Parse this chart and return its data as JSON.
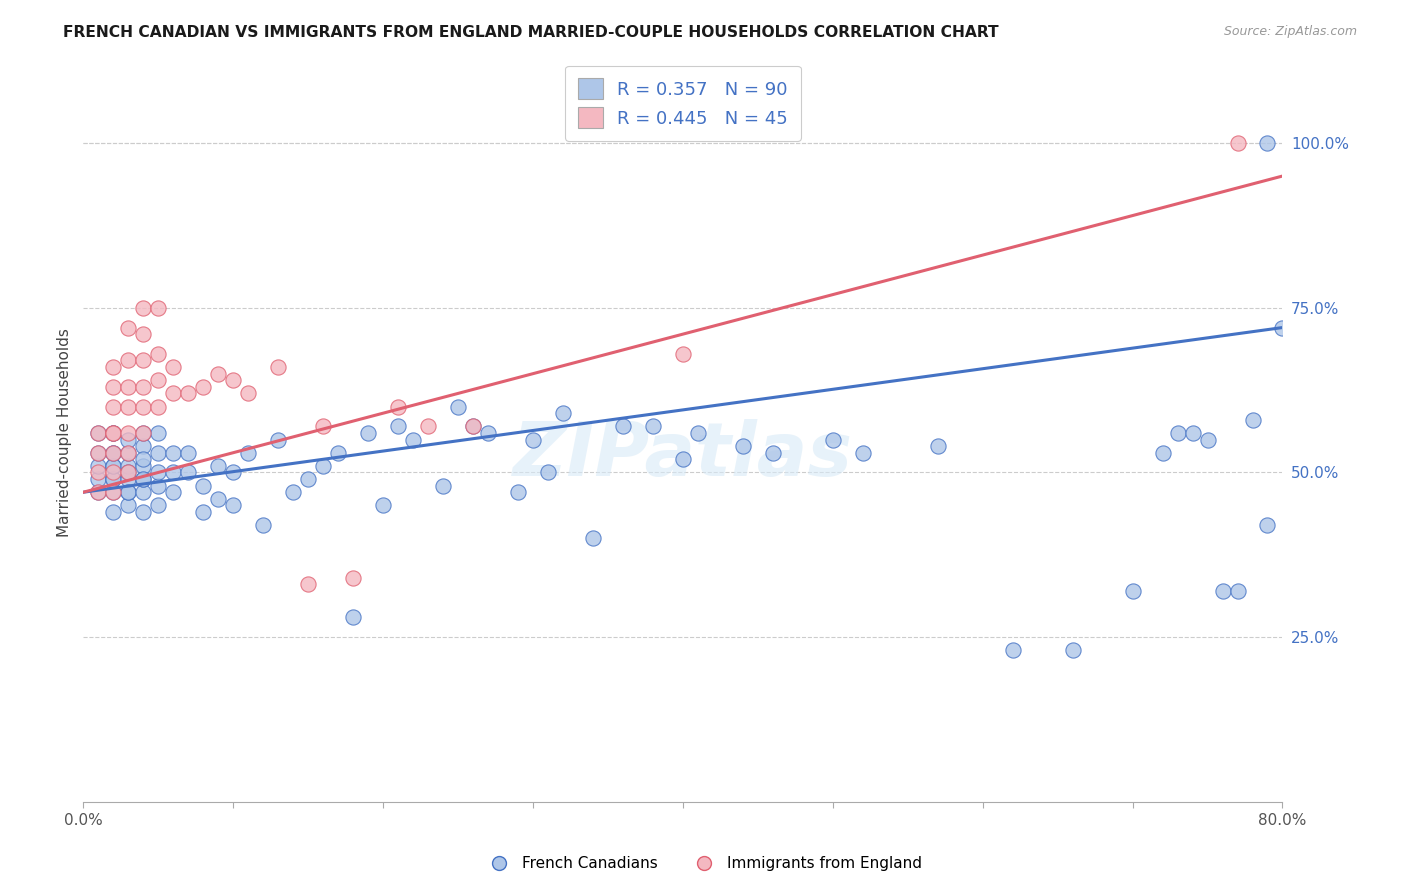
{
  "title": "FRENCH CANADIAN VS IMMIGRANTS FROM ENGLAND MARRIED-COUPLE HOUSEHOLDS CORRELATION CHART",
  "source": "Source: ZipAtlas.com",
  "ylabel": "Married-couple Households",
  "xmin": 0.0,
  "xmax": 0.8,
  "ymin": 0.0,
  "ymax": 1.12,
  "blue_color": "#aec6e8",
  "pink_color": "#f4b8c1",
  "blue_line_color": "#4472c4",
  "pink_line_color": "#e06070",
  "blue_R": 0.357,
  "blue_N": 90,
  "pink_R": 0.445,
  "pink_N": 45,
  "watermark": "ZIPatlas",
  "legend1": "French Canadians",
  "legend2": "Immigrants from England",
  "blue_x": [
    0.01,
    0.01,
    0.01,
    0.01,
    0.01,
    0.02,
    0.02,
    0.02,
    0.02,
    0.02,
    0.02,
    0.02,
    0.02,
    0.02,
    0.02,
    0.03,
    0.03,
    0.03,
    0.03,
    0.03,
    0.03,
    0.03,
    0.03,
    0.04,
    0.04,
    0.04,
    0.04,
    0.04,
    0.04,
    0.04,
    0.04,
    0.05,
    0.05,
    0.05,
    0.05,
    0.05,
    0.06,
    0.06,
    0.06,
    0.07,
    0.07,
    0.08,
    0.08,
    0.09,
    0.09,
    0.1,
    0.1,
    0.11,
    0.12,
    0.13,
    0.14,
    0.15,
    0.16,
    0.17,
    0.18,
    0.19,
    0.2,
    0.21,
    0.22,
    0.24,
    0.25,
    0.26,
    0.27,
    0.29,
    0.3,
    0.31,
    0.32,
    0.34,
    0.36,
    0.38,
    0.4,
    0.41,
    0.44,
    0.46,
    0.5,
    0.52,
    0.57,
    0.62,
    0.66,
    0.7,
    0.72,
    0.73,
    0.74,
    0.75,
    0.76,
    0.77,
    0.78,
    0.79,
    0.79,
    0.8
  ],
  "blue_y": [
    0.47,
    0.49,
    0.51,
    0.53,
    0.56,
    0.44,
    0.47,
    0.49,
    0.51,
    0.53,
    0.56,
    0.49,
    0.51,
    0.53,
    0.56,
    0.45,
    0.47,
    0.49,
    0.51,
    0.53,
    0.55,
    0.47,
    0.5,
    0.44,
    0.47,
    0.49,
    0.51,
    0.54,
    0.56,
    0.49,
    0.52,
    0.45,
    0.48,
    0.5,
    0.53,
    0.56,
    0.47,
    0.5,
    0.53,
    0.5,
    0.53,
    0.44,
    0.48,
    0.46,
    0.51,
    0.45,
    0.5,
    0.53,
    0.42,
    0.55,
    0.47,
    0.49,
    0.51,
    0.53,
    0.28,
    0.56,
    0.45,
    0.57,
    0.55,
    0.48,
    0.6,
    0.57,
    0.56,
    0.47,
    0.55,
    0.5,
    0.59,
    0.4,
    0.57,
    0.57,
    0.52,
    0.56,
    0.54,
    0.53,
    0.55,
    0.53,
    0.54,
    0.23,
    0.23,
    0.32,
    0.53,
    0.56,
    0.56,
    0.55,
    0.32,
    0.32,
    0.58,
    0.42,
    1.0,
    0.72
  ],
  "pink_x": [
    0.01,
    0.01,
    0.01,
    0.01,
    0.02,
    0.02,
    0.02,
    0.02,
    0.02,
    0.02,
    0.02,
    0.02,
    0.03,
    0.03,
    0.03,
    0.03,
    0.03,
    0.03,
    0.03,
    0.04,
    0.04,
    0.04,
    0.04,
    0.04,
    0.04,
    0.05,
    0.05,
    0.05,
    0.05,
    0.06,
    0.06,
    0.07,
    0.08,
    0.09,
    0.1,
    0.11,
    0.13,
    0.15,
    0.16,
    0.18,
    0.21,
    0.23,
    0.26,
    0.4,
    0.77
  ],
  "pink_y": [
    0.47,
    0.5,
    0.53,
    0.56,
    0.47,
    0.5,
    0.53,
    0.56,
    0.6,
    0.63,
    0.66,
    0.56,
    0.5,
    0.53,
    0.56,
    0.6,
    0.63,
    0.67,
    0.72,
    0.56,
    0.6,
    0.63,
    0.67,
    0.71,
    0.75,
    0.6,
    0.64,
    0.68,
    0.75,
    0.62,
    0.66,
    0.62,
    0.63,
    0.65,
    0.64,
    0.62,
    0.66,
    0.33,
    0.57,
    0.34,
    0.6,
    0.57,
    0.57,
    0.68,
    1.0
  ]
}
